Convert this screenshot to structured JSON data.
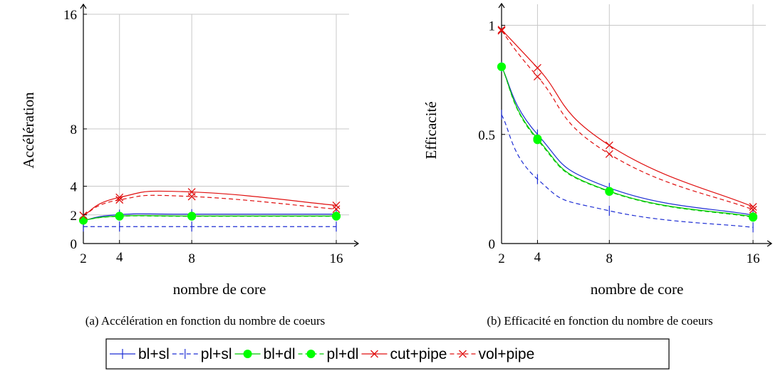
{
  "chart_data": [
    {
      "type": "line",
      "title": "",
      "caption": "(a)  Accélération en fonction du nombre de coeurs",
      "xlabel": "nombre de core",
      "ylabel": "Accélération",
      "x": [
        2,
        4,
        8,
        16
      ],
      "xticks": [
        "2",
        "4",
        "8",
        "16"
      ],
      "yticks": [
        "0",
        "2",
        "4",
        "8",
        "16"
      ],
      "ylim": [
        0,
        16
      ],
      "grid": true,
      "series": [
        {
          "name": "bl+sl",
          "values": [
            1.6,
            2.02,
            2.05,
            2.05
          ]
        },
        {
          "name": "pl+sl",
          "values": [
            1.18,
            1.18,
            1.18,
            1.18
          ]
        },
        {
          "name": "bl+dl",
          "values": [
            1.62,
            1.92,
            1.92,
            1.92
          ]
        },
        {
          "name": "pl+dl",
          "values": [
            1.62,
            1.9,
            1.9,
            1.9
          ]
        },
        {
          "name": "cut+pipe",
          "values": [
            1.96,
            3.22,
            3.6,
            2.66
          ]
        },
        {
          "name": "vol+pipe",
          "values": [
            1.96,
            3.05,
            3.28,
            2.4
          ]
        }
      ]
    },
    {
      "type": "line",
      "title": "",
      "caption": "(b)  Efficacité en fonction du nombre de coeurs",
      "xlabel": "nombre de core",
      "ylabel": "Efficacité",
      "x": [
        2,
        4,
        8,
        16
      ],
      "xticks": [
        "2",
        "4",
        "8",
        "16"
      ],
      "yticks": [
        "0",
        "0.5",
        "1"
      ],
      "ylim": [
        0,
        1.08
      ],
      "grid": true,
      "series": [
        {
          "name": "bl+sl",
          "values": [
            0.81,
            0.5,
            0.255,
            0.13
          ]
        },
        {
          "name": "pl+sl",
          "values": [
            0.59,
            0.295,
            0.15,
            0.074
          ]
        },
        {
          "name": "bl+dl",
          "values": [
            0.81,
            0.48,
            0.24,
            0.123
          ]
        },
        {
          "name": "pl+dl",
          "values": [
            0.81,
            0.475,
            0.238,
            0.12
          ]
        },
        {
          "name": "cut+pipe",
          "values": [
            0.98,
            0.805,
            0.45,
            0.168
          ]
        },
        {
          "name": "vol+pipe",
          "values": [
            0.975,
            0.765,
            0.41,
            0.155
          ]
        }
      ]
    }
  ],
  "legend": {
    "placement": "bottom-center",
    "entries": [
      {
        "name": "bl+sl",
        "color": "#1f2fd4",
        "dash": false,
        "marker": "bar"
      },
      {
        "name": "pl+sl",
        "color": "#1f2fd4",
        "dash": true,
        "marker": "bar"
      },
      {
        "name": "bl+dl",
        "color": "#00c800",
        "dash": false,
        "marker": "dot"
      },
      {
        "name": "pl+dl",
        "color": "#00c800",
        "dash": true,
        "marker": "dot"
      },
      {
        "name": "cut+pipe",
        "color": "#e01010",
        "dash": false,
        "marker": "x"
      },
      {
        "name": "vol+pipe",
        "color": "#e01010",
        "dash": true,
        "marker": "x"
      }
    ]
  }
}
